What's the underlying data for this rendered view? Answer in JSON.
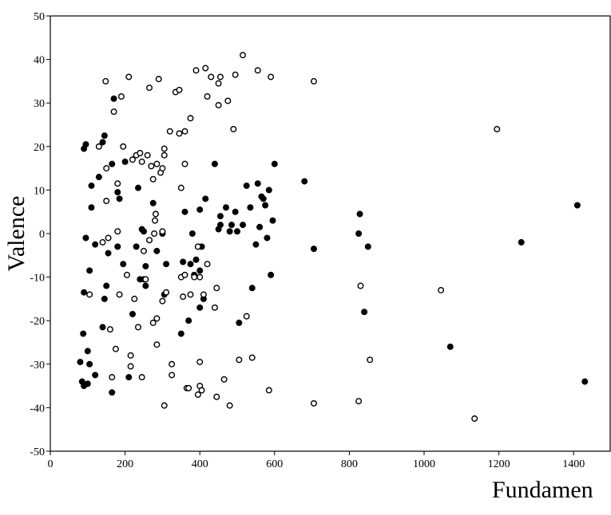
{
  "chart_data": {
    "type": "scatter",
    "x_label": "Fundamen",
    "y_label": "Valence",
    "xlim": [
      0,
      1500
    ],
    "ylim": [
      -50,
      50
    ],
    "xticks": [
      0,
      200,
      400,
      600,
      800,
      1000,
      1200,
      1400
    ],
    "yticks": [
      -50,
      -40,
      -30,
      -20,
      -10,
      0,
      10,
      20,
      30,
      40,
      50
    ],
    "series": [
      {
        "color": "#000000",
        "marker": "filled",
        "x": [
          80,
          85,
          90,
          95,
          95,
          90,
          88,
          90,
          100,
          100,
          105,
          110,
          110,
          105,
          120,
          120,
          130,
          140,
          145,
          140,
          145,
          150,
          155,
          165,
          165,
          170,
          180,
          180,
          185,
          195,
          200,
          210,
          220,
          230,
          235,
          240,
          245,
          250,
          250,
          255,
          255,
          275,
          285,
          300,
          305,
          310,
          350,
          355,
          360,
          370,
          375,
          380,
          385,
          390,
          400,
          400,
          400,
          405,
          410,
          415,
          440,
          450,
          455,
          455,
          470,
          480,
          485,
          495,
          500,
          505,
          515,
          525,
          535,
          540,
          550,
          555,
          560,
          565,
          570,
          575,
          580,
          585,
          590,
          595,
          600,
          680,
          705,
          825,
          828,
          840,
          850,
          1070,
          1260,
          1410,
          1430
        ],
        "values": [
          -29.5,
          -34,
          19.5,
          20.5,
          -1,
          -13.5,
          -23,
          -35,
          -34.5,
          -27,
          -30,
          11,
          6,
          -8.5,
          -2.5,
          -32.5,
          13,
          21,
          22.5,
          -21.5,
          -15,
          -12,
          -4.5,
          16,
          -36.5,
          31,
          9.5,
          -3,
          8,
          -7,
          16.5,
          -33,
          -18.5,
          -3,
          10.5,
          -10.5,
          1,
          0.5,
          -10.5,
          -12,
          -7.5,
          7,
          -4,
          0,
          -14,
          -7,
          -23,
          -6.5,
          5,
          -20,
          -7,
          0,
          -9.5,
          -6,
          -8.5,
          -17,
          5.5,
          -3,
          -15,
          8,
          16,
          1,
          2,
          4,
          6,
          0.5,
          2,
          5,
          0.5,
          -20.5,
          2,
          11,
          6,
          -12.5,
          -2.5,
          11.5,
          1.5,
          8.5,
          8,
          6.5,
          -1,
          10,
          -9.5,
          3,
          16,
          12,
          -3.5,
          0,
          4.5,
          -18,
          -3,
          -26,
          -2,
          6.5,
          -34
        ]
      },
      {
        "color": "#000000",
        "marker": "open",
        "x": [
          105,
          130,
          140,
          148,
          150,
          150,
          155,
          160,
          165,
          170,
          175,
          180,
          180,
          185,
          190,
          195,
          205,
          210,
          215,
          215,
          220,
          225,
          230,
          235,
          240,
          245,
          245,
          250,
          255,
          260,
          265,
          265,
          270,
          275,
          275,
          278,
          280,
          282,
          285,
          285,
          285,
          290,
          295,
          300,
          300,
          305,
          305,
          300,
          305,
          310,
          320,
          325,
          325,
          335,
          345,
          345,
          350,
          350,
          355,
          360,
          360,
          360,
          365,
          370,
          375,
          375,
          385,
          390,
          395,
          395,
          400,
          400,
          400,
          405,
          410,
          415,
          420,
          420,
          430,
          440,
          445,
          445,
          450,
          450,
          455,
          465,
          475,
          480,
          490,
          495,
          505,
          515,
          525,
          540,
          555,
          585,
          590,
          705,
          705,
          825,
          830,
          855,
          1045,
          1135,
          1195
        ],
        "values": [
          -14,
          20,
          -2,
          35,
          15,
          7.5,
          -1,
          -22,
          -33,
          28,
          -26.5,
          11.5,
          0.5,
          -14,
          31.5,
          20,
          -9.5,
          36,
          -28,
          -30.5,
          17,
          -15,
          18,
          -21.5,
          18.5,
          16.5,
          -33,
          -4,
          -10.5,
          18,
          -1.5,
          33.5,
          15.5,
          12.5,
          -20.5,
          0,
          3,
          4.5,
          16,
          -25.5,
          -19.5,
          35.5,
          14,
          15,
          0.5,
          19.5,
          18,
          -15.5,
          -39.5,
          -13.5,
          23.5,
          -30,
          -32.5,
          32.5,
          23,
          33,
          -10,
          10.5,
          -14.5,
          23.5,
          -9.5,
          16,
          -35.5,
          -35.5,
          -14,
          26.5,
          -10,
          37.5,
          -37,
          -3,
          -29.5,
          -35,
          -10,
          -36,
          -14,
          38,
          31.5,
          -7,
          36,
          -17,
          -12.5,
          -37.5,
          29.5,
          34.5,
          36,
          -33.5,
          30.5,
          -39.5,
          24,
          36.5,
          -29,
          41,
          -19,
          -28.5,
          37.5,
          -36,
          36,
          35,
          -39,
          -38.5,
          -12,
          -29,
          -13,
          -42.5,
          24
        ]
      }
    ]
  }
}
